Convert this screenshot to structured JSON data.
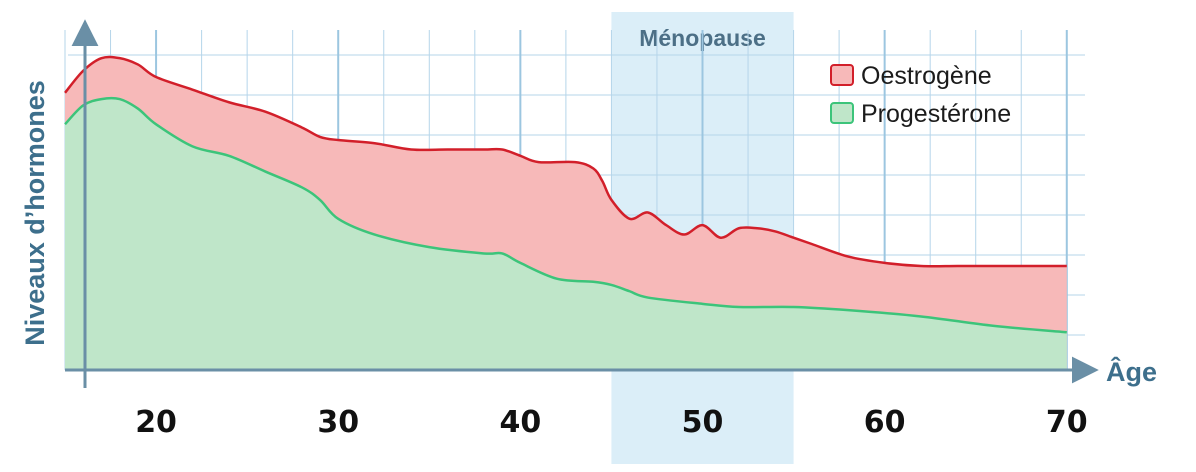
{
  "chart_data": {
    "type": "area",
    "xlabel": "Âge",
    "ylabel": "Niveaux d’hormones",
    "xlim": [
      15,
      71
    ],
    "ylim": [
      0,
      100
    ],
    "x_ticks": [
      20,
      30,
      40,
      50,
      60,
      70
    ],
    "x_tick_labels": [
      "20",
      "30",
      "40",
      "50",
      "60",
      "70"
    ],
    "grid": true,
    "legend_position": "top-right",
    "highlight_band": {
      "label": "Ménopause",
      "from": 45,
      "to": 55,
      "color": "#cfe8f5"
    },
    "series": [
      {
        "name": "Oestrogène",
        "color": "#f7b9b9",
        "line_color": "#d21f2a",
        "points": [
          [
            15,
            88
          ],
          [
            16,
            95
          ],
          [
            17,
            99
          ],
          [
            18,
            99
          ],
          [
            19,
            97
          ],
          [
            20,
            93
          ],
          [
            22,
            89
          ],
          [
            24,
            85
          ],
          [
            26,
            82
          ],
          [
            28,
            77
          ],
          [
            29,
            74
          ],
          [
            30,
            73
          ],
          [
            32,
            72
          ],
          [
            34,
            70
          ],
          [
            36,
            70
          ],
          [
            38,
            70
          ],
          [
            39,
            70
          ],
          [
            40,
            68
          ],
          [
            41,
            66
          ],
          [
            43,
            66
          ],
          [
            44,
            64
          ],
          [
            44.5,
            60
          ],
          [
            45,
            54
          ],
          [
            46,
            48
          ],
          [
            47,
            50
          ],
          [
            48,
            46
          ],
          [
            49,
            43
          ],
          [
            50,
            46
          ],
          [
            51,
            42
          ],
          [
            52,
            45
          ],
          [
            53,
            45
          ],
          [
            54,
            44
          ],
          [
            55,
            42
          ],
          [
            56,
            40
          ],
          [
            58,
            36
          ],
          [
            60,
            34
          ],
          [
            62,
            33
          ],
          [
            64,
            33
          ],
          [
            66,
            33
          ],
          [
            68,
            33
          ],
          [
            70,
            33
          ]
        ]
      },
      {
        "name": "Progestérone",
        "color": "#bfe6c9",
        "line_color": "#3cc47a",
        "points": [
          [
            15,
            78
          ],
          [
            16,
            84
          ],
          [
            17,
            86
          ],
          [
            18,
            86
          ],
          [
            19,
            83
          ],
          [
            20,
            78
          ],
          [
            22,
            71
          ],
          [
            24,
            68
          ],
          [
            26,
            63
          ],
          [
            28,
            58
          ],
          [
            29,
            54
          ],
          [
            30,
            48
          ],
          [
            32,
            43
          ],
          [
            35,
            39
          ],
          [
            38,
            37
          ],
          [
            39,
            37
          ],
          [
            40,
            34
          ],
          [
            42,
            29
          ],
          [
            44,
            28
          ],
          [
            45,
            27
          ],
          [
            46,
            25
          ],
          [
            47,
            23
          ],
          [
            50,
            21
          ],
          [
            52,
            20
          ],
          [
            55,
            20
          ],
          [
            58,
            19
          ],
          [
            62,
            17
          ],
          [
            66,
            14
          ],
          [
            70,
            12
          ]
        ]
      }
    ]
  }
}
